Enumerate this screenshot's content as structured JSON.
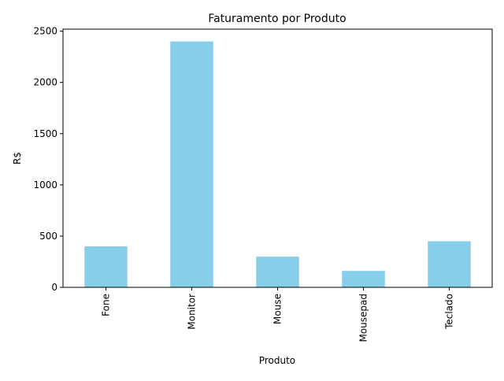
{
  "chart_data": {
    "type": "bar",
    "title": "Faturamento por Produto",
    "xlabel": "Produto",
    "ylabel": "R$",
    "categories": [
      "Fone",
      "Monitor",
      "Mouse",
      "Mousepad",
      "Teclado"
    ],
    "values": [
      400,
      2400,
      300,
      160,
      450
    ],
    "ylim": [
      0,
      2520
    ],
    "yticks": [
      0,
      500,
      1000,
      1500,
      2000,
      2500
    ],
    "bar_color": "#87ceeb",
    "grid": false,
    "legend": "none",
    "xtick_rotation": "vertical"
  }
}
